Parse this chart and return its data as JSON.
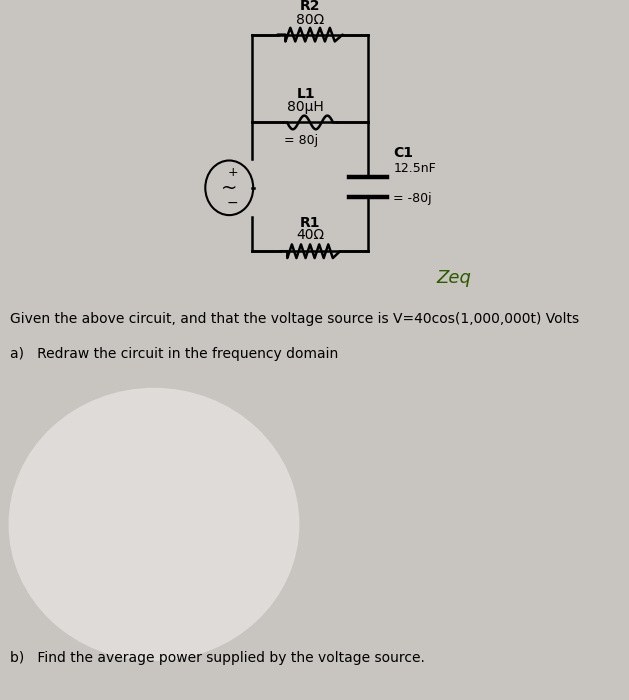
{
  "bg_color": "#c8c4c0",
  "body_text_1": "Given the above circuit, and that the voltage source is V=40cos(1,000,000t) Volts",
  "body_text_2": "a)   Redraw the circuit in the frequency domain",
  "body_text_3": "b)   Find the average power supplied by the voltage source.",
  "handwritten_note": "Zeq",
  "R2_label": "R2",
  "R2_value": "80Ω",
  "L1_label": "L1",
  "L1_value": "80μH",
  "L1_freq": "= 80j",
  "R1_label": "R1",
  "R1_value": "40Ω",
  "C1_label": "C1",
  "C1_value": "12.5nF",
  "C1_freq": "= -80j",
  "src_label_plus": "+",
  "src_label_minus": "-",
  "src_tilde": "~"
}
